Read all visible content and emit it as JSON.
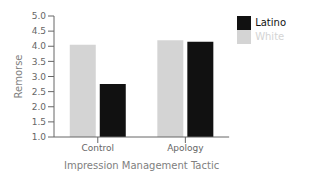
{
  "chart_data": {
    "type": "bar",
    "xlabel": "Impression Management Tactic",
    "ylabel": "Remorse",
    "categories": [
      "Control",
      "Apology"
    ],
    "series": [
      {
        "name": "White",
        "color": "#d4d4d4",
        "values": [
          4.05,
          4.2
        ]
      },
      {
        "name": "Latino",
        "color": "#111111",
        "values": [
          2.75,
          4.15
        ]
      }
    ],
    "ylim": [
      1,
      5
    ],
    "yticks": [
      {
        "value": 1,
        "label": "1.0"
      },
      1.5,
      {
        "value": 2,
        "label": "2.0"
      },
      2.5,
      {
        "value": 3,
        "label": "3.0"
      },
      3.5,
      {
        "value": 4,
        "label": "4.0"
      },
      4.5,
      {
        "value": 5,
        "label": "5.0"
      }
    ],
    "grid": false,
    "legend": "right"
  }
}
